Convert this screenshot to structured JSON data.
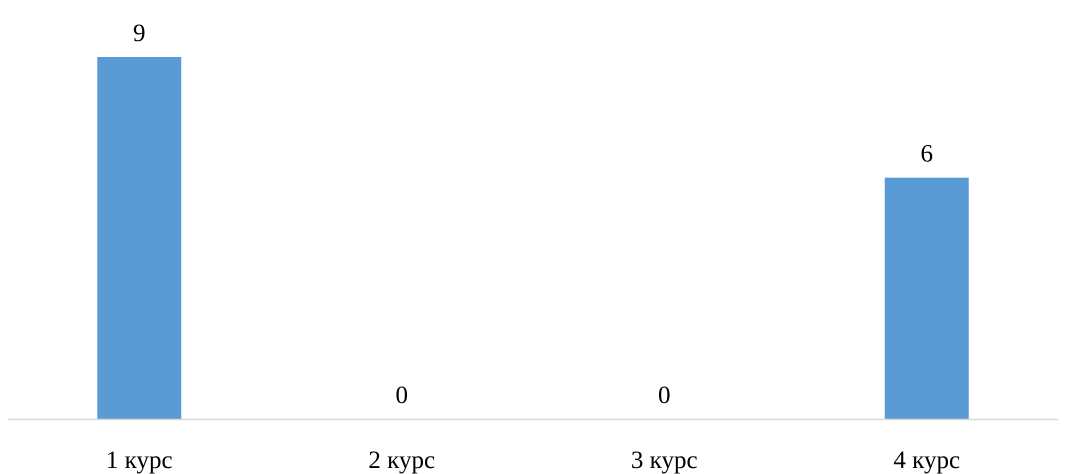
{
  "chart_data": {
    "type": "bar",
    "categories": [
      "1 курс",
      "2 курс",
      "3 курс",
      "4 курс"
    ],
    "values": [
      9,
      0,
      0,
      6
    ],
    "data_labels": [
      "9",
      "0",
      "0",
      "6"
    ],
    "title": "",
    "xlabel": "",
    "ylabel": "",
    "ylim": [
      0,
      9
    ],
    "grid": false,
    "legend": "none",
    "colors": {
      "bar": "#5B9BD5",
      "axis": "#D9D9D9",
      "text": "#000000"
    }
  }
}
